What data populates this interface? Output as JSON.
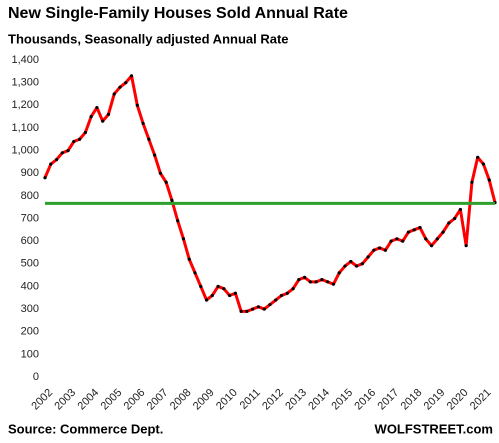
{
  "chart_data": {
    "type": "line",
    "title": "New Single-Family Houses Sold Annual Rate",
    "subtitle": "Thousands, Seasonally adjusted Annual Rate",
    "source": "Source: Commerce Dept.",
    "brand": "WOLFSTREET.com",
    "x": [
      2002,
      2002.25,
      2002.5,
      2002.75,
      2003,
      2003.25,
      2003.5,
      2003.75,
      2004,
      2004.25,
      2004.5,
      2004.75,
      2005,
      2005.25,
      2005.5,
      2005.75,
      2006,
      2006.25,
      2006.5,
      2006.75,
      2007,
      2007.25,
      2007.5,
      2007.75,
      2008,
      2008.25,
      2008.5,
      2008.75,
      2009,
      2009.25,
      2009.5,
      2009.75,
      2010,
      2010.25,
      2010.5,
      2010.75,
      2011,
      2011.25,
      2011.5,
      2011.75,
      2012,
      2012.25,
      2012.5,
      2012.75,
      2013,
      2013.25,
      2013.5,
      2013.75,
      2014,
      2014.25,
      2014.5,
      2014.75,
      2015,
      2015.25,
      2015.5,
      2015.75,
      2016,
      2016.25,
      2016.5,
      2016.75,
      2017,
      2017.25,
      2017.5,
      2017.75,
      2018,
      2018.25,
      2018.5,
      2018.75,
      2019,
      2019.25,
      2019.5,
      2019.75,
      2020,
      2020.25,
      2020.5,
      2020.75,
      2021,
      2021.25,
      2021.5
    ],
    "series": [
      {
        "name": "New Single-Family Houses Sold",
        "color": "#ff0000",
        "marker_color": "#000000",
        "values": [
          880,
          940,
          960,
          990,
          1000,
          1040,
          1050,
          1080,
          1150,
          1190,
          1130,
          1160,
          1250,
          1280,
          1300,
          1330,
          1200,
          1120,
          1050,
          980,
          900,
          860,
          780,
          690,
          610,
          520,
          460,
          400,
          340,
          360,
          400,
          390,
          360,
          370,
          290,
          290,
          300,
          310,
          300,
          320,
          340,
          360,
          370,
          390,
          430,
          440,
          420,
          420,
          430,
          420,
          410,
          460,
          490,
          510,
          490,
          500,
          530,
          560,
          570,
          560,
          600,
          610,
          600,
          640,
          650,
          660,
          610,
          580,
          610,
          640,
          680,
          700,
          740,
          580,
          860,
          970,
          940,
          870,
          770
        ]
      }
    ],
    "reference_line": {
      "value": 767,
      "color": "#2ca02c"
    },
    "xlim": [
      2002,
      2021.5
    ],
    "xticks": [
      2002,
      2003,
      2004,
      2005,
      2006,
      2007,
      2008,
      2009,
      2010,
      2011,
      2012,
      2013,
      2014,
      2015,
      2016,
      2017,
      2018,
      2019,
      2020,
      2021
    ],
    "ylim": [
      0,
      1400
    ],
    "yticks": [
      0,
      100,
      200,
      300,
      400,
      500,
      600,
      700,
      800,
      900,
      {
        "value": 1000,
        "label": "1,000"
      },
      {
        "value": 1100,
        "label": "1,100"
      },
      {
        "value": 1200,
        "label": "1,200"
      },
      {
        "value": 1300,
        "label": "1,300"
      },
      {
        "value": 1400,
        "label": "1,400"
      }
    ],
    "grid": false
  }
}
